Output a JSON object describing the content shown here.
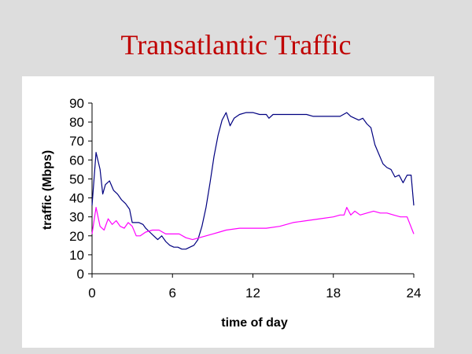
{
  "slide": {
    "title": "Transatlantic Traffic"
  },
  "colors": {
    "title": "#c00000",
    "background": "#dddddd",
    "panel": "#ffffff"
  },
  "chart_data": {
    "type": "line",
    "title": "",
    "xlabel": "time of day",
    "ylabel": "traffic (Mbps)",
    "xlim": [
      0,
      24
    ],
    "ylim": [
      0,
      90
    ],
    "xticks": [
      0,
      6,
      12,
      18,
      24
    ],
    "yticks": [
      0,
      10,
      20,
      30,
      40,
      50,
      60,
      70,
      80,
      90
    ],
    "grid": false,
    "legend": "none",
    "series": [
      {
        "color": "#000080",
        "x": [
          0,
          0.3,
          0.6,
          0.8,
          1.0,
          1.3,
          1.6,
          1.9,
          2.2,
          2.5,
          2.8,
          3.0,
          3.2,
          3.5,
          3.8,
          4.0,
          4.3,
          4.6,
          4.9,
          5.2,
          5.5,
          5.8,
          6.1,
          6.4,
          6.7,
          7.0,
          7.3,
          7.6,
          7.9,
          8.2,
          8.5,
          8.8,
          9.1,
          9.4,
          9.7,
          10.0,
          10.3,
          10.6,
          11.0,
          11.5,
          12.0,
          12.5,
          13.0,
          13.2,
          13.5,
          14.0,
          14.5,
          15.0,
          15.5,
          16.0,
          16.5,
          17.0,
          17.5,
          18.0,
          18.5,
          19.0,
          19.3,
          19.6,
          19.9,
          20.2,
          20.5,
          20.8,
          21.1,
          21.4,
          21.7,
          22.0,
          22.3,
          22.6,
          22.9,
          23.2,
          23.5,
          23.8,
          24.0
        ],
        "y": [
          36,
          64,
          55,
          42,
          47,
          49,
          44,
          42,
          39,
          37,
          34,
          27,
          27,
          27,
          26,
          24,
          22,
          20,
          18,
          20,
          17,
          15,
          14,
          14,
          13,
          13,
          14,
          15,
          18,
          25,
          35,
          48,
          62,
          73,
          81,
          85,
          78,
          82,
          84,
          85,
          85,
          84,
          84,
          82,
          84,
          84,
          84,
          84,
          84,
          84,
          83,
          83,
          83,
          83,
          83,
          85,
          83,
          82,
          81,
          82,
          79,
          77,
          68,
          63,
          58,
          56,
          55,
          51,
          52,
          48,
          52,
          52,
          36
        ]
      },
      {
        "color": "#ff00ff",
        "x": [
          0,
          0.3,
          0.6,
          0.9,
          1.2,
          1.5,
          1.8,
          2.1,
          2.4,
          2.7,
          3.0,
          3.3,
          3.6,
          4.0,
          4.5,
          5.0,
          5.5,
          6.0,
          6.5,
          7.0,
          7.5,
          8.0,
          8.5,
          9.0,
          9.5,
          10.0,
          11.0,
          12.0,
          13.0,
          14.0,
          15.0,
          16.0,
          17.0,
          18.0,
          18.5,
          18.8,
          19.0,
          19.3,
          19.6,
          20.0,
          20.5,
          21.0,
          21.5,
          22.0,
          22.5,
          23.0,
          23.5,
          24.0
        ],
        "y": [
          21,
          35,
          25,
          23,
          29,
          26,
          28,
          25,
          24,
          27,
          25,
          20,
          20,
          22,
          23,
          23,
          21,
          21,
          21,
          19,
          18,
          19,
          20,
          21,
          22,
          23,
          24,
          24,
          24,
          25,
          27,
          28,
          29,
          30,
          31,
          31,
          35,
          31,
          33,
          31,
          32,
          33,
          32,
          32,
          31,
          30,
          30,
          21
        ]
      }
    ]
  }
}
